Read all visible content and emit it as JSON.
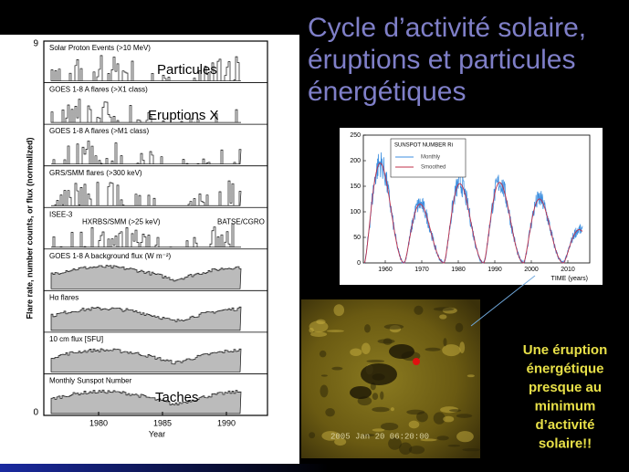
{
  "title": "Cycle d’activité solaire, éruptions et particules énergétiques",
  "left_figure": {
    "y_axis_label": "Flare rate, number counts, or flux (normalized)",
    "y_top": "9",
    "y_bottom": "0",
    "x_axis_label": "Year",
    "x_ticks": [
      "1980",
      "1985",
      "1990"
    ],
    "panels": [
      {
        "labels": [
          "Solar Proton Events (>10 MeV)"
        ]
      },
      {
        "labels": [
          "GOES 1-8 A flares (>X1 class)"
        ]
      },
      {
        "labels": [
          "GOES 1-8 A flares (>M1 class)"
        ]
      },
      {
        "labels": [
          "GRS/SMM flares (>300 keV)"
        ]
      },
      {
        "labels": [
          "ISEE-3",
          "HXRBS/SMM (>25 keV)",
          "BATSE/CGRO"
        ]
      },
      {
        "labels": [
          "GOES 1-8 A background flux (W m⁻²)"
        ]
      },
      {
        "labels": [
          "Hα flares"
        ]
      },
      {
        "labels": [
          "10 cm flux [SFU]"
        ]
      },
      {
        "labels": [
          "Monthly Sunspot Number"
        ]
      }
    ],
    "annotations": [
      "Particules",
      "Eruptions X",
      "Taches"
    ]
  },
  "sunspot_figure": {
    "legend_title": "SUNSPOT NUMBER Ri",
    "legend": [
      "Monthly",
      "Smoothed"
    ],
    "x_axis_label": "TIME (years)",
    "x_ticks": [
      1960,
      1970,
      1980,
      1990,
      2000,
      2010
    ],
    "y_ticks": [
      0,
      50,
      100,
      150,
      200,
      250
    ]
  },
  "sun_image": {
    "timestamp": "2005 Jan 20 06:20:00"
  },
  "caption": [
    "Une éruption",
    "énergétique",
    "presque au",
    "minimum",
    "d’activité",
    "solaire!!"
  ]
}
